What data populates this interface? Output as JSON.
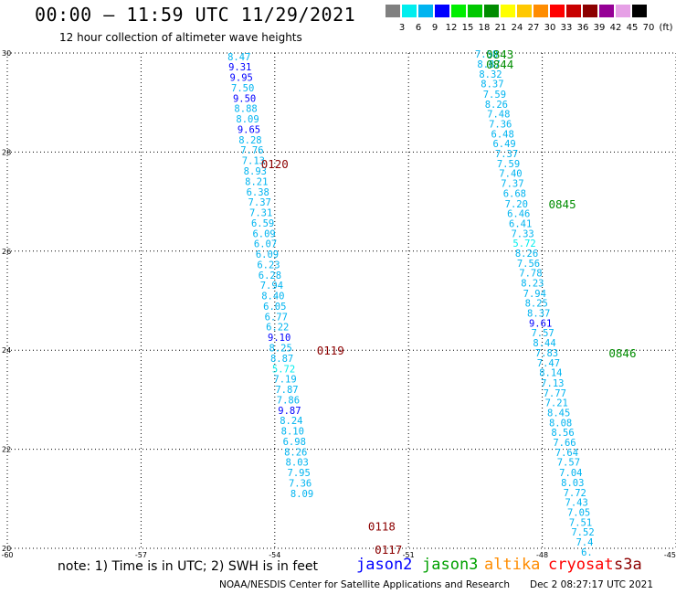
{
  "title": "00:00 – 11:59 UTC 11/29/2021",
  "subtitle": "12 hour collection of altimeter wave heights",
  "legend": {
    "colors": [
      "#808080",
      "#00eeee",
      "#00b4f0",
      "#0000ff",
      "#00ee00",
      "#00c800",
      "#008c00",
      "#ffff00",
      "#ffc800",
      "#ff8c00",
      "#ff0000",
      "#c80000",
      "#8c0000",
      "#960096",
      "#e6a0e6",
      "#000000"
    ],
    "labels": [
      "3",
      "6",
      "9",
      "12",
      "15",
      "18",
      "21",
      "24",
      "27",
      "30",
      "33",
      "36",
      "39",
      "42",
      "45",
      "70"
    ],
    "unit": "(ft)"
  },
  "axes": {
    "x_ticks": [
      "-60",
      "-57",
      "-54",
      "-51",
      "-48",
      "-45"
    ],
    "y_ticks": [
      "20",
      "22",
      "24",
      "26",
      "28",
      "30"
    ]
  },
  "tracks": [
    {
      "name": "track-west",
      "points": [
        {
          "lon": -54.8,
          "lat": 29.93,
          "v": "8.47",
          "c": "#00b4f0"
        },
        {
          "lon": -54.78,
          "lat": 29.72,
          "v": "9.31",
          "c": "#0000ff"
        },
        {
          "lon": -54.75,
          "lat": 29.51,
          "v": "9.95",
          "c": "#0000ff"
        },
        {
          "lon": -54.72,
          "lat": 29.3,
          "v": "7.50",
          "c": "#00b4f0"
        },
        {
          "lon": -54.68,
          "lat": 29.09,
          "v": "9.50",
          "c": "#0000ff"
        },
        {
          "lon": -54.65,
          "lat": 28.88,
          "v": "8.88",
          "c": "#00b4f0"
        },
        {
          "lon": -54.61,
          "lat": 28.67,
          "v": "8.09",
          "c": "#00b4f0"
        },
        {
          "lon": -54.58,
          "lat": 28.46,
          "v": "9.65",
          "c": "#0000ff"
        },
        {
          "lon": -54.55,
          "lat": 28.25,
          "v": "8.28",
          "c": "#00b4f0"
        },
        {
          "lon": -54.51,
          "lat": 28.04,
          "v": "7.76",
          "c": "#00b4f0"
        },
        {
          "lon": -54.48,
          "lat": 27.83,
          "v": "7.13",
          "c": "#00b4f0"
        },
        {
          "lon": -54.44,
          "lat": 27.62,
          "v": "8.93",
          "c": "#00b4f0"
        },
        {
          "lon": -54.41,
          "lat": 27.41,
          "v": "8.21",
          "c": "#00b4f0"
        },
        {
          "lon": -54.38,
          "lat": 27.2,
          "v": "6.38",
          "c": "#00b4f0"
        },
        {
          "lon": -54.34,
          "lat": 26.99,
          "v": "7.37",
          "c": "#00b4f0"
        },
        {
          "lon": -54.31,
          "lat": 26.78,
          "v": "7.31",
          "c": "#00b4f0"
        },
        {
          "lon": -54.27,
          "lat": 26.57,
          "v": "6.59",
          "c": "#00b4f0"
        },
        {
          "lon": -54.24,
          "lat": 26.36,
          "v": "6.09",
          "c": "#00b4f0"
        },
        {
          "lon": -54.21,
          "lat": 26.15,
          "v": "6.07",
          "c": "#00b4f0"
        },
        {
          "lon": -54.17,
          "lat": 25.94,
          "v": "6.09",
          "c": "#00b4f0"
        },
        {
          "lon": -54.14,
          "lat": 25.73,
          "v": "6.23",
          "c": "#00b4f0"
        },
        {
          "lon": -54.11,
          "lat": 25.52,
          "v": "6.28",
          "c": "#00b4f0"
        },
        {
          "lon": -54.07,
          "lat": 25.31,
          "v": "7.94",
          "c": "#00b4f0"
        },
        {
          "lon": -54.04,
          "lat": 25.1,
          "v": "8.40",
          "c": "#00b4f0"
        },
        {
          "lon": -54.0,
          "lat": 24.89,
          "v": "6.05",
          "c": "#00b4f0"
        },
        {
          "lon": -53.97,
          "lat": 24.68,
          "v": "6.77",
          "c": "#00b4f0"
        },
        {
          "lon": -53.94,
          "lat": 24.47,
          "v": "6.22",
          "c": "#00b4f0"
        },
        {
          "lon": -53.9,
          "lat": 24.26,
          "v": "9.10",
          "c": "#0000ff"
        },
        {
          "lon": -53.87,
          "lat": 24.05,
          "v": "8.25",
          "c": "#00b4f0"
        },
        {
          "lon": -53.84,
          "lat": 23.84,
          "v": "8.87",
          "c": "#00b4f0"
        },
        {
          "lon": -53.8,
          "lat": 23.63,
          "v": "5.72",
          "c": "#00eeee"
        },
        {
          "lon": -53.77,
          "lat": 23.42,
          "v": "7.19",
          "c": "#00b4f0"
        },
        {
          "lon": -53.73,
          "lat": 23.21,
          "v": "7.87",
          "c": "#00b4f0"
        },
        {
          "lon": -53.7,
          "lat": 23.0,
          "v": "7.86",
          "c": "#00b4f0"
        },
        {
          "lon": -53.67,
          "lat": 22.79,
          "v": "9.87",
          "c": "#0000ff"
        },
        {
          "lon": -53.63,
          "lat": 22.58,
          "v": "8.24",
          "c": "#00b4f0"
        },
        {
          "lon": -53.6,
          "lat": 22.37,
          "v": "8.10",
          "c": "#00b4f0"
        },
        {
          "lon": -53.56,
          "lat": 22.16,
          "v": "6.98",
          "c": "#00b4f0"
        },
        {
          "lon": -53.53,
          "lat": 21.95,
          "v": "8.26",
          "c": "#00b4f0"
        },
        {
          "lon": -53.5,
          "lat": 21.74,
          "v": "8.03",
          "c": "#00b4f0"
        },
        {
          "lon": -53.46,
          "lat": 21.53,
          "v": "7.95",
          "c": "#00b4f0"
        },
        {
          "lon": -53.43,
          "lat": 21.32,
          "v": "7.36",
          "c": "#00b4f0"
        },
        {
          "lon": -53.39,
          "lat": 21.11,
          "v": "8.09",
          "c": "#00b4f0"
        }
      ]
    },
    {
      "name": "track-east",
      "points": [
        {
          "lon": -49.25,
          "lat": 29.98,
          "v": "7.58",
          "c": "#00b4f0"
        },
        {
          "lon": -49.2,
          "lat": 29.78,
          "v": "8.87",
          "c": "#00b4f0"
        },
        {
          "lon": -49.16,
          "lat": 29.58,
          "v": "8.32",
          "c": "#00b4f0"
        },
        {
          "lon": -49.12,
          "lat": 29.38,
          "v": "8.37",
          "c": "#00b4f0"
        },
        {
          "lon": -49.07,
          "lat": 29.17,
          "v": "7.59",
          "c": "#00b4f0"
        },
        {
          "lon": -49.03,
          "lat": 28.97,
          "v": "8.26",
          "c": "#00b4f0"
        },
        {
          "lon": -48.98,
          "lat": 28.77,
          "v": "7.48",
          "c": "#00b4f0"
        },
        {
          "lon": -48.94,
          "lat": 28.57,
          "v": "7.36",
          "c": "#00b4f0"
        },
        {
          "lon": -48.89,
          "lat": 28.37,
          "v": "6.48",
          "c": "#00b4f0"
        },
        {
          "lon": -48.85,
          "lat": 28.17,
          "v": "6.49",
          "c": "#00b4f0"
        },
        {
          "lon": -48.8,
          "lat": 27.97,
          "v": "7.37",
          "c": "#00b4f0"
        },
        {
          "lon": -48.76,
          "lat": 27.77,
          "v": "7.59",
          "c": "#00b4f0"
        },
        {
          "lon": -48.71,
          "lat": 27.57,
          "v": "7.40",
          "c": "#00b4f0"
        },
        {
          "lon": -48.67,
          "lat": 27.37,
          "v": "7.37",
          "c": "#00b4f0"
        },
        {
          "lon": -48.62,
          "lat": 27.17,
          "v": "6.68",
          "c": "#00b4f0"
        },
        {
          "lon": -48.58,
          "lat": 26.96,
          "v": "7.20",
          "c": "#00b4f0"
        },
        {
          "lon": -48.53,
          "lat": 26.76,
          "v": "6.46",
          "c": "#00b4f0"
        },
        {
          "lon": -48.49,
          "lat": 26.56,
          "v": "6.41",
          "c": "#00b4f0"
        },
        {
          "lon": -48.44,
          "lat": 26.36,
          "v": "7.33",
          "c": "#00b4f0"
        },
        {
          "lon": -48.4,
          "lat": 26.16,
          "v": "5.72",
          "c": "#00eeee"
        },
        {
          "lon": -48.35,
          "lat": 25.96,
          "v": "8.26",
          "c": "#00b4f0"
        },
        {
          "lon": -48.31,
          "lat": 25.76,
          "v": "7.56",
          "c": "#00b4f0"
        },
        {
          "lon": -48.26,
          "lat": 25.56,
          "v": "7.78",
          "c": "#00b4f0"
        },
        {
          "lon": -48.22,
          "lat": 25.36,
          "v": "8.23",
          "c": "#00b4f0"
        },
        {
          "lon": -48.17,
          "lat": 25.15,
          "v": "7.94",
          "c": "#00b4f0"
        },
        {
          "lon": -48.13,
          "lat": 24.95,
          "v": "8.25",
          "c": "#00b4f0"
        },
        {
          "lon": -48.08,
          "lat": 24.75,
          "v": "8.37",
          "c": "#00b4f0"
        },
        {
          "lon": -48.04,
          "lat": 24.55,
          "v": "9.61",
          "c": "#0000ff"
        },
        {
          "lon": -47.99,
          "lat": 24.35,
          "v": "7.57",
          "c": "#00b4f0"
        },
        {
          "lon": -47.95,
          "lat": 24.15,
          "v": "8.44",
          "c": "#00b4f0"
        },
        {
          "lon": -47.9,
          "lat": 23.95,
          "v": "7.83",
          "c": "#00b4f0"
        },
        {
          "lon": -47.86,
          "lat": 23.75,
          "v": "7.47",
          "c": "#00b4f0"
        },
        {
          "lon": -47.81,
          "lat": 23.55,
          "v": "8.14",
          "c": "#00b4f0"
        },
        {
          "lon": -47.77,
          "lat": 23.34,
          "v": "7.13",
          "c": "#00b4f0"
        },
        {
          "lon": -47.72,
          "lat": 23.14,
          "v": "7.77",
          "c": "#00b4f0"
        },
        {
          "lon": -47.68,
          "lat": 22.94,
          "v": "7.21",
          "c": "#00b4f0"
        },
        {
          "lon": -47.63,
          "lat": 22.74,
          "v": "8.45",
          "c": "#00b4f0"
        },
        {
          "lon": -47.59,
          "lat": 22.54,
          "v": "8.08",
          "c": "#00b4f0"
        },
        {
          "lon": -47.54,
          "lat": 22.34,
          "v": "8.56",
          "c": "#00b4f0"
        },
        {
          "lon": -47.5,
          "lat": 22.14,
          "v": "7.66",
          "c": "#00b4f0"
        },
        {
          "lon": -47.45,
          "lat": 21.94,
          "v": "7.64",
          "c": "#00b4f0"
        },
        {
          "lon": -47.41,
          "lat": 21.74,
          "v": "7.57",
          "c": "#00b4f0"
        },
        {
          "lon": -47.36,
          "lat": 21.53,
          "v": "7.04",
          "c": "#00b4f0"
        },
        {
          "lon": -47.32,
          "lat": 21.33,
          "v": "8.03",
          "c": "#00b4f0"
        },
        {
          "lon": -47.27,
          "lat": 21.13,
          "v": "7.72",
          "c": "#00b4f0"
        },
        {
          "lon": -47.23,
          "lat": 20.93,
          "v": "7.43",
          "c": "#00b4f0"
        },
        {
          "lon": -47.18,
          "lat": 20.73,
          "v": "7.05",
          "c": "#00b4f0"
        },
        {
          "lon": -47.14,
          "lat": 20.53,
          "v": "7.51",
          "c": "#00b4f0"
        },
        {
          "lon": -47.09,
          "lat": 20.33,
          "v": "7.52",
          "c": "#00b4f0"
        },
        {
          "lon": -47.05,
          "lat": 20.13,
          "v": "7.4",
          "c": "#00b4f0"
        },
        {
          "lon": -47.0,
          "lat": 19.93,
          "v": "6.",
          "c": "#00b4f0"
        }
      ]
    }
  ],
  "time_labels": [
    {
      "lon": -54.0,
      "lat": 27.77,
      "t": "0120",
      "c": "#8c0000"
    },
    {
      "lon": -52.75,
      "lat": 24.0,
      "t": "0119",
      "c": "#8c0000"
    },
    {
      "lon": -51.6,
      "lat": 20.45,
      "t": "0118",
      "c": "#8c0000"
    },
    {
      "lon": -51.45,
      "lat": 19.98,
      "t": "0117",
      "c": "#8c0000"
    },
    {
      "lon": -48.95,
      "lat": 29.98,
      "t": "0843",
      "c": "#008c00"
    },
    {
      "lon": -48.95,
      "lat": 29.78,
      "t": "0844",
      "c": "#008c00"
    },
    {
      "lon": -47.55,
      "lat": 26.96,
      "t": "0845",
      "c": "#008c00"
    },
    {
      "lon": -46.2,
      "lat": 23.95,
      "t": "0846",
      "c": "#008c00"
    }
  ],
  "note": "note: 1) Time is in UTC; 2) SWH is in feet",
  "missions": [
    {
      "name": "jason2",
      "color": "#0000ff"
    },
    {
      "name": "jason3",
      "color": "#00a000"
    },
    {
      "name": "altika",
      "color": "#ff8c00"
    },
    {
      "name": "cryosat",
      "color": "#ff0000"
    },
    {
      "name": "s3a",
      "color": "#8c0000"
    }
  ],
  "credit": "NOAA/NESDIS Center for Satellite Applications and Research",
  "generated": "Dec  2 08:27:17 UTC 2021"
}
